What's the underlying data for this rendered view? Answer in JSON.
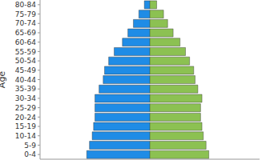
{
  "chart_data": {
    "type": "bar",
    "orientation": "horizontal",
    "ylabel": "Age",
    "categories": [
      "0-4",
      "5-9",
      "10-14",
      "15-19",
      "20-24",
      "25-29",
      "30-34",
      "35-39",
      "40-44",
      "45-49",
      "50-54",
      "55-59",
      "60-64",
      "65-69",
      "70-74",
      "75-79",
      "80-84"
    ],
    "series": [
      {
        "color": "#1f8ce6",
        "values": [
          4.6,
          4.4,
          4.2,
          4.1,
          4.0,
          4.0,
          4.0,
          3.7,
          3.4,
          3.3,
          3.0,
          2.6,
          2.0,
          1.6,
          1.2,
          0.8,
          0.4
        ]
      },
      {
        "color": "#8cc152",
        "values": [
          4.3,
          4.1,
          3.9,
          3.8,
          3.7,
          3.7,
          3.8,
          3.5,
          3.3,
          3.2,
          2.9,
          2.6,
          2.2,
          1.7,
          1.3,
          1.0,
          0.5
        ]
      }
    ],
    "xlim": [
      0,
      8
    ],
    "tick_labels": "y"
  }
}
